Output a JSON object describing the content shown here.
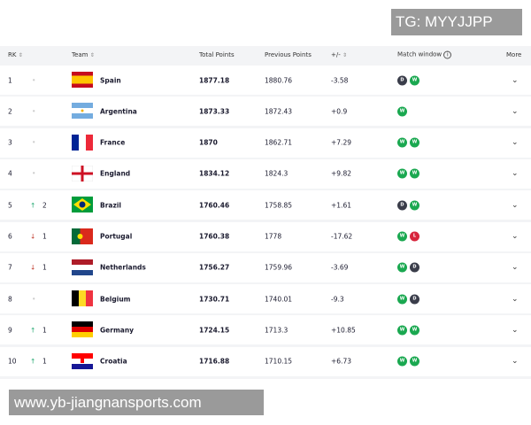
{
  "watermarks": {
    "top": "TG: MYYJJPP",
    "bottom": "www.yb-jiangnansports.com"
  },
  "headers": {
    "rk": "RK",
    "team": "Team",
    "total": "Total Points",
    "previous": "Previous Points",
    "diff": "+/-",
    "match": "Match window",
    "more": "More"
  },
  "colors": {
    "W": "#1aa850",
    "D": "#3a3d4a",
    "L": "#d7263d",
    "up": "#1aa56b",
    "down": "#c0392b"
  },
  "rows": [
    {
      "rk": "1",
      "move": "",
      "dir": "none",
      "team": "Spain",
      "flag": "spain",
      "total": "1877.18",
      "prev": "1880.76",
      "diff": "-3.58",
      "match": [
        "D",
        "W"
      ]
    },
    {
      "rk": "2",
      "move": "",
      "dir": "none",
      "team": "Argentina",
      "flag": "argentina",
      "total": "1873.33",
      "prev": "1872.43",
      "diff": "+0.9",
      "match": [
        "W"
      ]
    },
    {
      "rk": "3",
      "move": "",
      "dir": "none",
      "team": "France",
      "flag": "france",
      "total": "1870",
      "prev": "1862.71",
      "diff": "+7.29",
      "match": [
        "W",
        "W"
      ]
    },
    {
      "rk": "4",
      "move": "",
      "dir": "none",
      "team": "England",
      "flag": "england",
      "total": "1834.12",
      "prev": "1824.3",
      "diff": "+9.82",
      "match": [
        "W",
        "W"
      ]
    },
    {
      "rk": "5",
      "move": "2",
      "dir": "up",
      "team": "Brazil",
      "flag": "brazil",
      "total": "1760.46",
      "prev": "1758.85",
      "diff": "+1.61",
      "match": [
        "D",
        "W"
      ]
    },
    {
      "rk": "6",
      "move": "1",
      "dir": "down",
      "team": "Portugal",
      "flag": "portugal",
      "total": "1760.38",
      "prev": "1778",
      "diff": "-17.62",
      "match": [
        "W",
        "L"
      ]
    },
    {
      "rk": "7",
      "move": "1",
      "dir": "down",
      "team": "Netherlands",
      "flag": "netherlands",
      "total": "1756.27",
      "prev": "1759.96",
      "diff": "-3.69",
      "match": [
        "W",
        "D"
      ]
    },
    {
      "rk": "8",
      "move": "",
      "dir": "none",
      "team": "Belgium",
      "flag": "belgium",
      "total": "1730.71",
      "prev": "1740.01",
      "diff": "-9.3",
      "match": [
        "W",
        "D"
      ]
    },
    {
      "rk": "9",
      "move": "1",
      "dir": "up",
      "team": "Germany",
      "flag": "germany",
      "total": "1724.15",
      "prev": "1713.3",
      "diff": "+10.85",
      "match": [
        "W",
        "W"
      ]
    },
    {
      "rk": "10",
      "move": "1",
      "dir": "up",
      "team": "Croatia",
      "flag": "croatia",
      "total": "1716.88",
      "prev": "1710.15",
      "diff": "+6.73",
      "match": [
        "W",
        "W"
      ]
    }
  ]
}
